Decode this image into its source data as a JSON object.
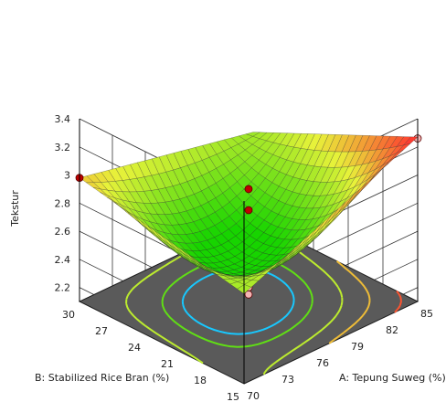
{
  "chart_data": {
    "type": "surface3d",
    "title": "",
    "zlabel": "Tekstur",
    "xlabel": "A: Tepung Suweg (%)",
    "ylabel": "B: Stabilized Rice Bran (%)",
    "z_ticks": [
      "2.2",
      "2.4",
      "2.6",
      "2.8",
      "3",
      "3.2",
      "3.4"
    ],
    "x_ticks": [
      "70",
      "73",
      "76",
      "79",
      "82",
      "85"
    ],
    "y_ticks": [
      "15",
      "18",
      "21",
      "24",
      "27",
      "30"
    ],
    "xlim": [
      70,
      85
    ],
    "ylim": [
      15,
      30
    ],
    "zlim": [
      2.1,
      3.4
    ],
    "surface_corners": [
      {
        "A": 70,
        "B": 30,
        "z": 2.98
      },
      {
        "A": 85,
        "B": 30,
        "z": 2.72
      },
      {
        "A": 85,
        "B": 15,
        "z": 3.27
      },
      {
        "A": 70,
        "B": 15,
        "z": 2.74
      }
    ],
    "surface_min": {
      "A": 74.5,
      "B": 21.5,
      "z": 2.44
    },
    "design_points": [
      {
        "A": 70,
        "B": 30,
        "z": 2.98,
        "position": "above"
      },
      {
        "A": 85,
        "B": 15,
        "z": 3.26,
        "position": "below"
      },
      {
        "A": 77.5,
        "B": 22.5,
        "z": 2.9,
        "position": "above"
      },
      {
        "A": 77.5,
        "B": 22.5,
        "z": 2.75,
        "position": "above"
      },
      {
        "A": 77.5,
        "B": 22.5,
        "z": 2.2,
        "position": "below"
      },
      {
        "A": 77.5,
        "B": 22.5,
        "z": 2.15,
        "position": "below"
      }
    ],
    "contour_levels": [
      2.5,
      2.6,
      2.8,
      3.0,
      3.2
    ],
    "colors": {
      "low": "#17d400",
      "mid": "#e8f23a",
      "high": "#ff2f2f",
      "floor": "#5a5a5a",
      "point_above": "#c00000",
      "point_below": "#f5b5b5"
    }
  }
}
